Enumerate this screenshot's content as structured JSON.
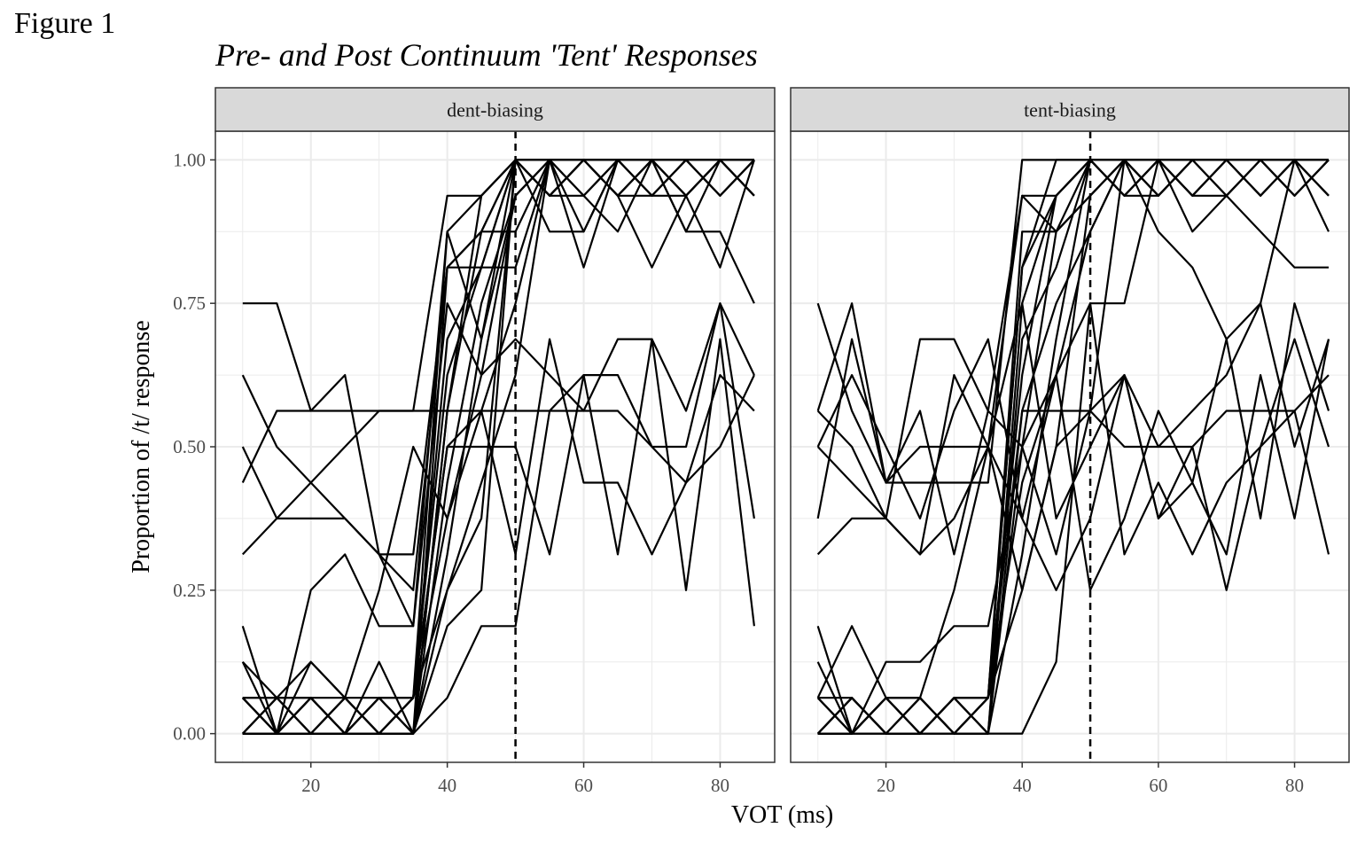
{
  "figure_label": "Figure 1",
  "chart_data": {
    "type": "line",
    "title": "Pre- and Post Continuum 'Tent' Responses",
    "xlabel": "VOT (ms)",
    "ylabel": "Proportion of /t/ response",
    "xlim": [
      6,
      88
    ],
    "ylim": [
      -0.05,
      1.05
    ],
    "x_ticks": [
      20,
      40,
      60,
      80
    ],
    "x_tick_labels": [
      "20",
      "40",
      "60",
      "80"
    ],
    "y_ticks": [
      0,
      0.25,
      0.5,
      0.75,
      1.0
    ],
    "y_tick_labels": [
      "0.00",
      "0.25",
      "0.50",
      "0.75",
      "1.00"
    ],
    "grid": true,
    "reference_line": {
      "x": 50,
      "style": "dashed"
    },
    "x": [
      10,
      15,
      20,
      25,
      30,
      35,
      40,
      45,
      50,
      55,
      60,
      65,
      70,
      75,
      80,
      85
    ],
    "panels": [
      {
        "label": "dent-biasing",
        "series": [
          {
            "values": [
              0.75,
              0.75,
              0.5625,
              0.5625,
              0.5625,
              0.5625,
              0.9375,
              0.9375,
              1.0,
              1.0,
              1.0,
              0.9375,
              0.9375,
              0.9375,
              1.0,
              0.9375
            ]
          },
          {
            "values": [
              0.625,
              0.5,
              0.4375,
              0.375,
              0.3125,
              0.3125,
              0.8125,
              0.8125,
              0.8125,
              1.0,
              0.9375,
              1.0,
              1.0,
              1.0,
              0.9375,
              1.0
            ]
          },
          {
            "values": [
              0.5,
              0.375,
              0.375,
              0.375,
              0.3125,
              0.1875,
              0.875,
              0.9375,
              1.0,
              0.875,
              0.875,
              1.0,
              1.0,
              0.875,
              0.875,
              0.75
            ]
          },
          {
            "values": [
              0.4375,
              0.5625,
              0.5625,
              0.625,
              0.3125,
              0.25,
              0.8125,
              0.875,
              1.0,
              0.9375,
              1.0,
              0.9375,
              0.8125,
              0.9375,
              0.8125,
              1.0
            ]
          },
          {
            "values": [
              0.3125,
              0.375,
              0.4375,
              0.5,
              0.5625,
              0.5625,
              0.5625,
              0.5625,
              0.5625,
              0.5625,
              0.625,
              0.625,
              0.5,
              0.5,
              0.75,
              0.625
            ]
          },
          {
            "values": [
              0.1875,
              0.0,
              0.25,
              0.3125,
              0.1875,
              0.1875,
              0.75,
              0.625,
              0.6875,
              0.625,
              0.5625,
              0.5625,
              0.5,
              0.4375,
              0.5,
              0.625
            ]
          },
          {
            "values": [
              0.125,
              0.0625,
              0.125,
              0.0625,
              0.25,
              0.5,
              0.375,
              0.5625,
              0.3125,
              0.6875,
              0.4375,
              0.4375,
              0.3125,
              0.4375,
              0.625,
              0.5625
            ]
          },
          {
            "values": [
              0.0625,
              0.0625,
              0.0625,
              0.0625,
              0.0625,
              0.0625,
              0.5,
              0.5,
              0.5,
              0.3125,
              0.625,
              0.3125,
              0.6875,
              0.25,
              0.6875,
              0.1875
            ]
          },
          {
            "values": [
              0.0,
              0.0,
              0.0,
              0.0,
              0.0,
              0.0,
              0.0625,
              0.1875,
              0.1875,
              0.5625,
              0.5625,
              0.6875,
              0.6875,
              0.5625,
              0.75,
              0.375
            ]
          },
          {
            "values": [
              0.0625,
              0.0,
              0.0625,
              0.0,
              0.0625,
              0.0,
              0.25,
              0.375,
              1.0,
              0.9375,
              0.9375,
              0.875,
              1.0,
              0.875,
              1.0,
              1.0
            ]
          },
          {
            "values": [
              0.0,
              0.0625,
              0.0,
              0.0625,
              0.0,
              0.0625,
              0.375,
              0.625,
              0.9375,
              1.0,
              1.0,
              1.0,
              0.9375,
              1.0,
              1.0,
              0.9375
            ]
          },
          {
            "values": [
              0.125,
              0.0,
              0.0625,
              0.0,
              0.125,
              0.0,
              0.5625,
              0.875,
              1.0,
              1.0,
              0.8125,
              1.0,
              1.0,
              1.0,
              0.9375,
              1.0
            ]
          },
          {
            "values": [
              0.0625,
              0.0,
              0.125,
              0.0625,
              0.0,
              0.0625,
              0.6875,
              0.8125,
              1.0,
              0.9375,
              1.0,
              0.9375,
              1.0,
              0.9375,
              1.0,
              1.0
            ]
          },
          {
            "values": [
              0.0,
              0.0625,
              0.0,
              0.0,
              0.0625,
              0.0,
              0.4375,
              0.75,
              0.9375,
              1.0,
              0.9375,
              1.0,
              0.9375,
              1.0,
              1.0,
              0.9375
            ]
          },
          {
            "values": [
              0.0,
              0.0,
              0.0625,
              0.0,
              0.0,
              0.0625,
              0.625,
              0.8125,
              1.0,
              1.0,
              1.0,
              1.0,
              1.0,
              0.9375,
              1.0,
              1.0
            ]
          },
          {
            "values": [
              0.0625,
              0.0,
              0.0,
              0.0625,
              0.0,
              0.0,
              0.8125,
              0.875,
              0.875,
              1.0,
              1.0,
              0.9375,
              1.0,
              1.0,
              0.9375,
              1.0
            ]
          },
          {
            "values": [
              0.0,
              0.0625,
              0.0625,
              0.0,
              0.0625,
              0.0,
              0.3125,
              0.6875,
              1.0,
              0.9375,
              1.0,
              1.0,
              0.9375,
              1.0,
              1.0,
              1.0
            ]
          },
          {
            "values": [
              0.0,
              0.0,
              0.0,
              0.0625,
              0.0,
              0.0625,
              0.5,
              0.5625,
              0.75,
              1.0,
              0.875,
              1.0,
              1.0,
              1.0,
              1.0,
              0.9375
            ]
          },
          {
            "values": [
              0.0625,
              0.0625,
              0.0,
              0.0,
              0.0625,
              0.0625,
              0.25,
              0.4375,
              0.625,
              1.0,
              1.0,
              0.9375,
              1.0,
              0.9375,
              1.0,
              1.0
            ]
          },
          {
            "values": [
              0.0,
              0.0,
              0.0,
              0.0,
              0.0,
              0.0,
              0.1875,
              0.25,
              1.0,
              0.9375,
              1.0,
              1.0,
              1.0,
              1.0,
              1.0,
              1.0
            ]
          },
          {
            "values": [
              0.0,
              0.0,
              0.0625,
              0.0,
              0.0,
              0.0625,
              0.875,
              0.6875,
              0.9375,
              1.0,
              1.0,
              1.0,
              1.0,
              1.0,
              1.0,
              1.0
            ]
          },
          {
            "values": [
              0.0625,
              0.0,
              0.0,
              0.0,
              0.0,
              0.0,
              0.5625,
              0.9375,
              1.0,
              1.0,
              1.0,
              1.0,
              1.0,
              1.0,
              1.0,
              1.0
            ]
          }
        ]
      },
      {
        "label": "tent-biasing",
        "series": [
          {
            "values": [
              0.75,
              0.5625,
              0.4375,
              0.4375,
              0.4375,
              0.4375,
              1.0,
              1.0,
              1.0,
              1.0,
              1.0,
              0.9375,
              0.9375,
              0.875,
              0.8125,
              0.8125
            ]
          },
          {
            "values": [
              0.5625,
              0.75,
              0.4375,
              0.5,
              0.5,
              0.5,
              0.9375,
              0.9375,
              1.0,
              1.0,
              0.875,
              0.8125,
              0.6875,
              0.75,
              1.0,
              0.875
            ]
          },
          {
            "values": [
              0.5,
              0.4375,
              0.375,
              0.6875,
              0.6875,
              0.5625,
              0.9375,
              0.875,
              0.9375,
              1.0,
              1.0,
              0.875,
              0.9375,
              1.0,
              1.0,
              0.9375
            ]
          },
          {
            "values": [
              0.5625,
              0.5,
              0.375,
              0.3125,
              0.625,
              0.5,
              0.75,
              0.375,
              0.5,
              0.625,
              0.5,
              0.5625,
              0.625,
              0.75,
              0.5,
              0.6875
            ]
          },
          {
            "values": [
              0.375,
              0.6875,
              0.4375,
              0.5625,
              0.3125,
              0.5625,
              0.5,
              0.3125,
              0.5625,
              0.625,
              0.375,
              0.5,
              0.25,
              0.5,
              0.6875,
              0.5
            ]
          },
          {
            "values": [
              0.3125,
              0.375,
              0.375,
              0.3125,
              0.375,
              0.5,
              0.25,
              0.5,
              0.5625,
              0.5,
              0.5,
              0.5,
              0.5625,
              0.5625,
              0.5625,
              0.3125
            ]
          },
          {
            "values": [
              0.5,
              0.625,
              0.5,
              0.375,
              0.5625,
              0.6875,
              0.375,
              0.625,
              0.75,
              0.3125,
              0.4375,
              0.3125,
              0.4375,
              0.5,
              0.5625,
              0.625
            ]
          },
          {
            "values": [
              0.1875,
              0.0,
              0.0625,
              0.0625,
              0.25,
              0.5,
              0.375,
              0.25,
              0.375,
              0.625,
              0.375,
              0.4375,
              0.6875,
              0.375,
              0.75,
              0.5625
            ]
          },
          {
            "values": [
              0.125,
              0.0,
              0.125,
              0.125,
              0.1875,
              0.1875,
              0.5,
              0.625,
              0.25,
              0.375,
              0.5625,
              0.4375,
              0.3125,
              0.625,
              0.375,
              0.6875
            ]
          },
          {
            "values": [
              0.0625,
              0.1875,
              0.0625,
              0.0,
              0.0625,
              0.0625,
              0.8125,
              0.9375,
              1.0,
              0.9375,
              0.9375,
              1.0,
              1.0,
              1.0,
              0.9375,
              1.0
            ]
          },
          {
            "values": [
              0.0,
              0.0625,
              0.0,
              0.0625,
              0.0,
              0.0625,
              0.875,
              0.875,
              0.9375,
              1.0,
              1.0,
              0.9375,
              1.0,
              0.9375,
              1.0,
              1.0
            ]
          },
          {
            "values": [
              0.0625,
              0.0,
              0.0625,
              0.0,
              0.0625,
              0.0,
              0.6875,
              0.8125,
              1.0,
              0.9375,
              1.0,
              1.0,
              0.9375,
              1.0,
              0.9375,
              1.0
            ]
          },
          {
            "values": [
              0.0,
              0.0625,
              0.0,
              0.0625,
              0.0,
              0.0625,
              0.625,
              0.9375,
              1.0,
              1.0,
              0.9375,
              1.0,
              1.0,
              0.9375,
              1.0,
              0.9375
            ]
          },
          {
            "values": [
              0.0625,
              0.0,
              0.0625,
              0.0,
              0.0625,
              0.0,
              0.5625,
              0.75,
              0.875,
              1.0,
              1.0,
              0.9375,
              1.0,
              1.0,
              1.0,
              1.0
            ]
          },
          {
            "values": [
              0.0,
              0.0,
              0.0,
              0.0625,
              0.0,
              0.0,
              0.5,
              0.875,
              1.0,
              0.9375,
              1.0,
              1.0,
              1.0,
              1.0,
              1.0,
              1.0
            ]
          },
          {
            "values": [
              0.0625,
              0.0625,
              0.0,
              0.0,
              0.0625,
              0.0625,
              0.8125,
              1.0,
              1.0,
              1.0,
              0.9375,
              1.0,
              0.9375,
              1.0,
              1.0,
              1.0
            ]
          },
          {
            "values": [
              0.0,
              0.0,
              0.0625,
              0.0625,
              0.0,
              0.0625,
              0.4375,
              0.625,
              0.875,
              1.0,
              1.0,
              1.0,
              1.0,
              1.0,
              0.9375,
              1.0
            ]
          },
          {
            "values": [
              0.0,
              0.0625,
              0.0,
              0.0,
              0.0625,
              0.0,
              0.3125,
              0.6875,
              1.0,
              0.9375,
              1.0,
              0.9375,
              1.0,
              1.0,
              1.0,
              1.0
            ]
          },
          {
            "values": [
              0.0,
              0.0,
              0.0,
              0.0,
              0.0,
              0.0625,
              0.25,
              0.5,
              0.9375,
              1.0,
              1.0,
              1.0,
              1.0,
              0.9375,
              1.0,
              1.0
            ]
          },
          {
            "values": [
              0.0625,
              0.0,
              0.0625,
              0.0625,
              0.0,
              0.0,
              0.0,
              0.125,
              0.75,
              0.75,
              1.0,
              1.0,
              1.0,
              1.0,
              1.0,
              1.0
            ]
          },
          {
            "values": [
              0.0,
              0.0625,
              0.0,
              0.0,
              0.0625,
              0.0625,
              0.5625,
              0.5625,
              0.5625,
              1.0,
              0.9375,
              1.0,
              1.0,
              1.0,
              1.0,
              0.9375
            ]
          },
          {
            "values": [
              0.0,
              0.0,
              0.0625,
              0.0,
              0.0,
              0.0,
              0.75,
              0.9375,
              1.0,
              1.0,
              1.0,
              1.0,
              1.0,
              1.0,
              1.0,
              1.0
            ]
          }
        ]
      }
    ]
  },
  "colors": {
    "line": "#000000",
    "grid": "#ebebeb",
    "strip_fill": "#d9d9d9",
    "border": "#333333",
    "tick_text": "#4d4d4d"
  }
}
